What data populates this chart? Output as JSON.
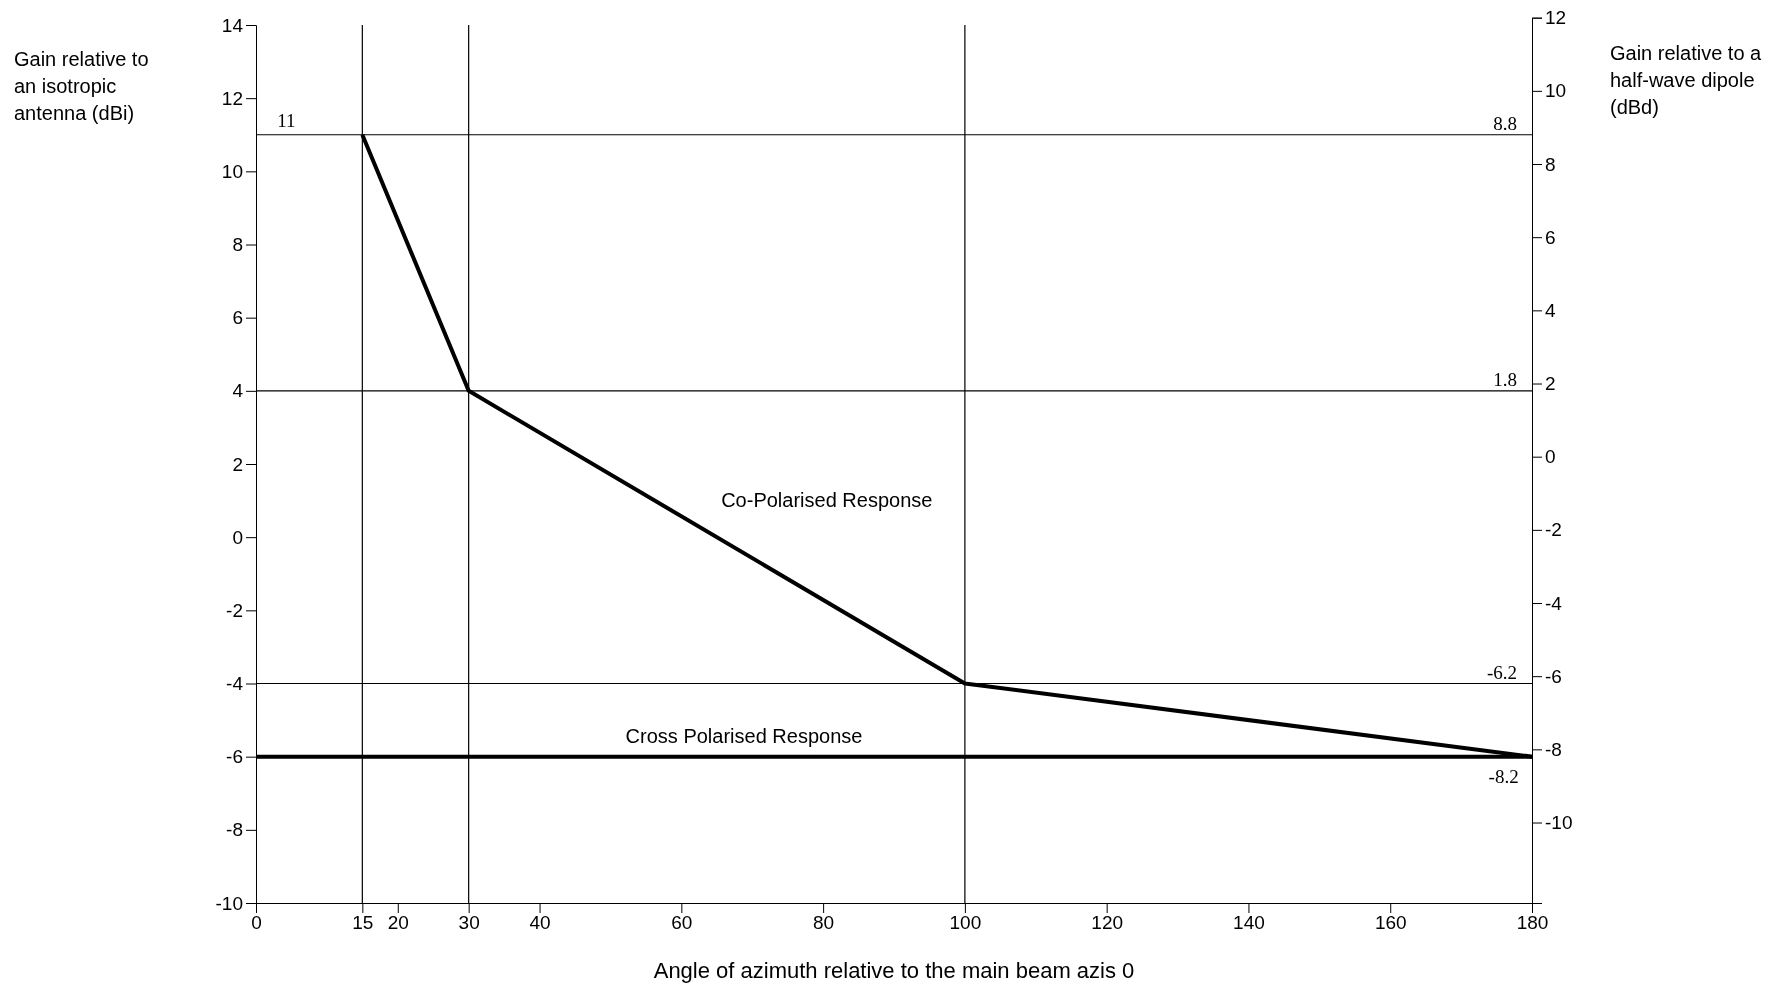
{
  "chart_data": {
    "type": "line",
    "xlabel": "Angle of azimuth relative to the main beam azis 0",
    "ylabel": "Gain relative to an isotropic antenna (dBi)",
    "y2label": "Gain relative to a half-wave dipole (dBd)",
    "xlim": [
      0,
      180
    ],
    "xticks": [
      0,
      15,
      20,
      30,
      40,
      60,
      80,
      100,
      120,
      140,
      160,
      180
    ],
    "ylim": [
      -10,
      14
    ],
    "yticks": [
      -10,
      -8,
      -6,
      -4,
      -2,
      0,
      2,
      4,
      6,
      8,
      10,
      12,
      14
    ],
    "y2lim": [
      -12.2,
      12
    ],
    "y2ticks": [
      -10,
      -8,
      -6,
      -4,
      -2,
      0,
      2,
      4,
      6,
      8,
      10,
      12
    ],
    "grid": false,
    "marker": "none",
    "line_style": "solid",
    "series": [
      {
        "name": "Co-Polarised Response",
        "color": "#000000",
        "x": [
          15,
          30,
          100,
          180
        ],
        "values": [
          11,
          4,
          -4,
          -6
        ]
      },
      {
        "name": "Cross Polarised Response",
        "color": "#000000",
        "x": [
          0,
          180
        ],
        "values": [
          -6,
          -6
        ]
      }
    ],
    "ref_lines": [
      {
        "axis": "y2",
        "value": 8.8,
        "color": "#000000",
        "label": "8.8"
      },
      {
        "axis": "y2",
        "value": 1.8,
        "color": "#000000",
        "label": "1.8"
      },
      {
        "axis": "y2",
        "value": -6.2,
        "color": "#000000",
        "label": "-6.2"
      },
      {
        "axis": "x",
        "value": 15,
        "color": "#000000"
      },
      {
        "axis": "x",
        "value": 30,
        "color": "#000000"
      },
      {
        "axis": "x",
        "value": 100,
        "color": "#000000"
      }
    ],
    "annotations": [
      {
        "text": "11",
        "x": 3,
        "y": 11
      },
      {
        "text": "-8.2",
        "x": 176,
        "y": -6
      }
    ]
  }
}
